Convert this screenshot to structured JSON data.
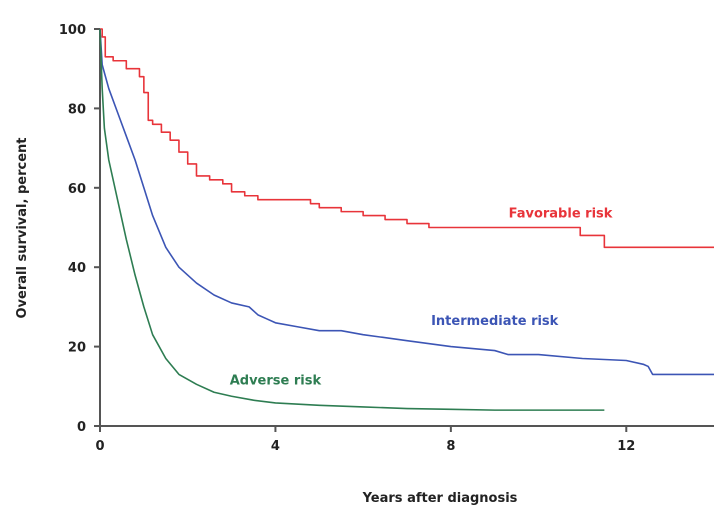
{
  "chart_data": {
    "type": "line",
    "title": "",
    "xlabel": "Years after diagnosis",
    "ylabel": "Overall survival, percent",
    "xlim": [
      0,
      14
    ],
    "ylim": [
      0,
      100
    ],
    "xticks": [
      0,
      4,
      8,
      12
    ],
    "yticks": [
      0,
      20,
      40,
      60,
      80,
      100
    ],
    "grid": false,
    "series": [
      {
        "name": "Favorable risk",
        "color": "#e8343a",
        "step": true,
        "x": [
          0,
          0.05,
          0.12,
          0.3,
          0.6,
          0.9,
          1.0,
          1.1,
          1.2,
          1.4,
          1.6,
          1.8,
          2.0,
          2.2,
          2.5,
          2.8,
          3.0,
          3.3,
          3.6,
          4.0,
          4.5,
          4.8,
          5.0,
          5.5,
          6.0,
          6.5,
          7.0,
          7.5,
          8.0,
          9.0,
          10.0,
          10.95,
          11.1,
          11.4,
          11.5,
          12.5,
          14.0
        ],
        "y": [
          100,
          98,
          93,
          92,
          90,
          88,
          84,
          77,
          76,
          74,
          72,
          69,
          66,
          63,
          62,
          61,
          59,
          58,
          57,
          57,
          57,
          56,
          55,
          54,
          53,
          52,
          51,
          50,
          50,
          50,
          50,
          48,
          48,
          48,
          45,
          45,
          45
        ]
      },
      {
        "name": "Intermediate risk",
        "color": "#3c55b5",
        "step": false,
        "x": [
          0,
          0.05,
          0.2,
          0.4,
          0.6,
          0.8,
          1.0,
          1.2,
          1.5,
          1.8,
          2.2,
          2.6,
          3.0,
          3.4,
          3.6,
          3.8,
          4.0,
          4.5,
          5.0,
          5.5,
          6.0,
          7.0,
          8.0,
          9.0,
          9.3,
          10.0,
          11.0,
          12.0,
          12.4,
          12.5,
          12.6,
          13.0,
          14.0
        ],
        "y": [
          100,
          91,
          85,
          79,
          73,
          67,
          60,
          53,
          45,
          40,
          36,
          33,
          31,
          30,
          28,
          27,
          26,
          25,
          24,
          24,
          23,
          21.5,
          20,
          19,
          18,
          18,
          17,
          16.5,
          15.5,
          15,
          13,
          13,
          13
        ]
      },
      {
        "name": "Adverse risk",
        "color": "#2e7d52",
        "step": false,
        "x": [
          0,
          0.05,
          0.1,
          0.2,
          0.4,
          0.6,
          0.8,
          1.0,
          1.2,
          1.5,
          1.8,
          2.2,
          2.6,
          3.0,
          3.5,
          4.0,
          5.0,
          6.0,
          7.0,
          8.0,
          9.0,
          10.0,
          11.5
        ],
        "y": [
          100,
          85,
          75,
          67,
          57,
          47,
          38,
          30,
          23,
          17,
          13,
          10.5,
          8.5,
          7.5,
          6.5,
          5.8,
          5.2,
          4.8,
          4.4,
          4.2,
          4.0,
          4.0,
          4.0
        ]
      }
    ],
    "annotations": [
      {
        "text": "Favorable risk",
        "x": 10.5,
        "y": 52.5,
        "color": "#e8343a"
      },
      {
        "text": "Intermediate risk",
        "x": 9.0,
        "y": 25.5,
        "color": "#3c55b5"
      },
      {
        "text": "Adverse risk",
        "x": 4.0,
        "y": 10.5,
        "color": "#2e7d52"
      }
    ]
  }
}
